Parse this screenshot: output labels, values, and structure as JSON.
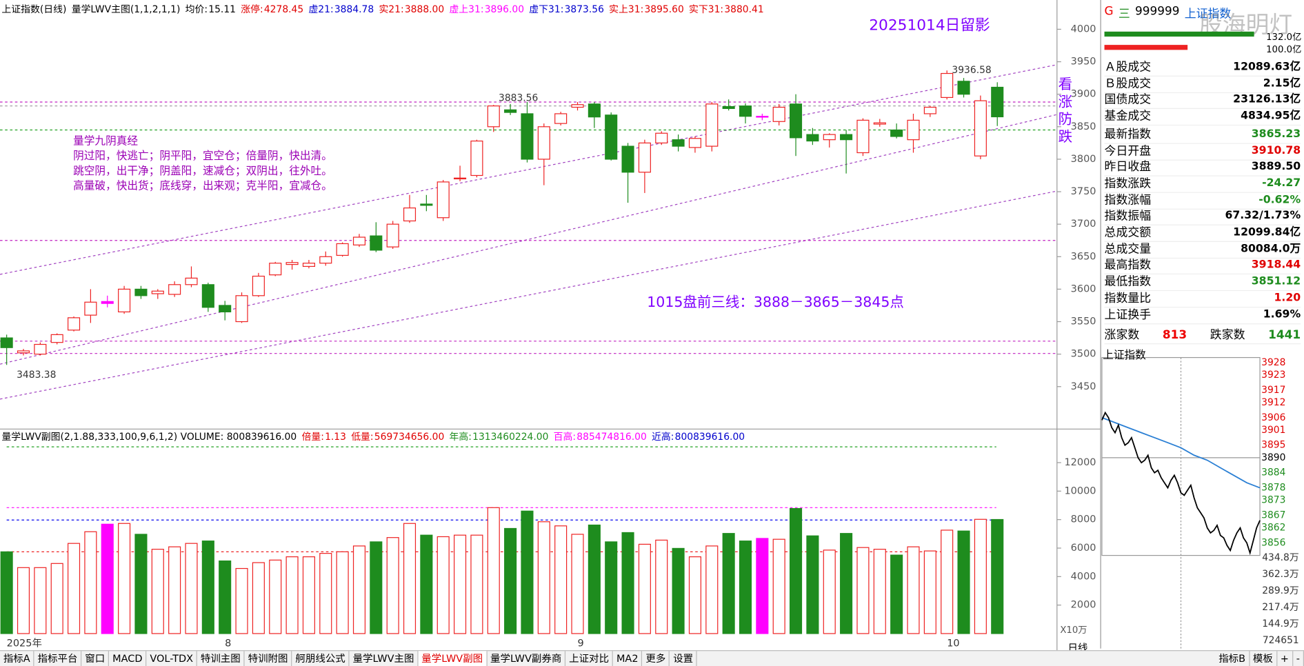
{
  "header": {
    "title": "上证指数(日线)",
    "indicator": "量学LWV主图(1,1,2,1,1)",
    "items": [
      {
        "label": "均价:",
        "value": "15.11",
        "color": "#000000"
      },
      {
        "label": "涨停:",
        "value": "4278.45",
        "color": "#e00000"
      },
      {
        "label": "虚21:",
        "value": "3884.78",
        "color": "#0000cc"
      },
      {
        "label": "实21:",
        "value": "3888.00",
        "color": "#e00000"
      },
      {
        "label": "虚上31:",
        "value": "3896.00",
        "color": "#ff00ff"
      },
      {
        "label": "虚下31:",
        "value": "3873.56",
        "color": "#0000cc"
      },
      {
        "label": "实上31:",
        "value": "3895.60",
        "color": "#e00000"
      },
      {
        "label": "实下31:",
        "value": "3880.41",
        "color": "#e00000"
      }
    ]
  },
  "main_chart": {
    "type": "candlestick",
    "ylim": [
      3386,
      4022
    ],
    "yticks": [
      4000,
      3950,
      3900,
      3850,
      3800,
      3750,
      3700,
      3650,
      3600,
      3550,
      3500,
      3450
    ],
    "categories": [
      "2025年",
      null,
      null,
      null,
      null,
      null,
      null,
      null,
      null,
      null,
      null,
      null,
      null,
      "8",
      null,
      null,
      null,
      null,
      null,
      null,
      null,
      null,
      null,
      null,
      null,
      null,
      null,
      null,
      null,
      null,
      null,
      null,
      null,
      null,
      "9",
      null,
      null,
      null,
      null,
      null,
      null,
      null,
      null,
      null,
      null,
      null,
      null,
      null,
      null,
      null,
      null,
      null,
      null,
      null,
      null,
      null,
      "10",
      null,
      null,
      null
    ],
    "open": [
      3525,
      3502,
      3500,
      3518,
      3537,
      3560,
      3578,
      3565,
      3600,
      3593,
      3592,
      3607,
      3607,
      3575,
      3550,
      3590,
      3622,
      3638,
      3635,
      3640,
      3652,
      3668,
      3682,
      3665,
      3705,
      3731,
      3710,
      3770,
      3775,
      3850,
      3876,
      3870,
      3800,
      3855,
      3880,
      3885,
      3868,
      3820,
      3780,
      3825,
      3830,
      3818,
      3820,
      3881,
      3882,
      3866,
      3858,
      3885,
      3838,
      3830,
      3838,
      3810,
      3854,
      3845,
      3830,
      3870,
      3895,
      3920,
      3805,
      3910.78
    ],
    "high": [
      3530,
      3508,
      3518,
      3532,
      3558,
      3600,
      3590,
      3605,
      3605,
      3600,
      3612,
      3635,
      3610,
      3582,
      3595,
      3625,
      3642,
      3645,
      3645,
      3658,
      3672,
      3685,
      3703,
      3705,
      3745,
      3745,
      3768,
      3790,
      3830,
      3883.56,
      3885,
      3888,
      3855,
      3873,
      3888,
      3888,
      3872,
      3825,
      3830,
      3843,
      3838,
      3835,
      3888,
      3892,
      3886,
      3870,
      3885,
      3900,
      3848,
      3840,
      3845,
      3863,
      3862,
      3855,
      3870,
      3882,
      3936.58,
      3925,
      3898,
      3918.44
    ],
    "low": [
      3483.38,
      3498,
      3498,
      3515,
      3535,
      3548,
      3572,
      3562,
      3585,
      3585,
      3588,
      3603,
      3565,
      3552,
      3548,
      3588,
      3620,
      3630,
      3632,
      3636,
      3650,
      3665,
      3657,
      3662,
      3702,
      3720,
      3705,
      3766,
      3772,
      3842,
      3868,
      3795,
      3760,
      3852,
      3875,
      3848,
      3798,
      3733,
      3748,
      3822,
      3812,
      3810,
      3812,
      3875,
      3855,
      3860,
      3852,
      3805,
      3822,
      3818,
      3778,
      3805,
      3850,
      3832,
      3810,
      3865,
      3892,
      3895,
      3800,
      3851.12
    ],
    "close": [
      3510,
      3505,
      3515,
      3530,
      3556,
      3580,
      3581,
      3600,
      3590,
      3597,
      3607,
      3617,
      3572,
      3565,
      3590,
      3620,
      3640,
      3641,
      3640,
      3650,
      3670,
      3680,
      3660,
      3700,
      3725,
      3729,
      3765,
      3771,
      3828,
      3882,
      3872,
      3800,
      3850,
      3870,
      3884,
      3865,
      3800,
      3780,
      3825,
      3840,
      3820,
      3832,
      3885,
      3878,
      3866,
      3865,
      3880,
      3833,
      3828,
      3838,
      3830,
      3860,
      3856,
      3835,
      3860,
      3880,
      3932,
      3900,
      3890,
      3865.23
    ],
    "up_color": "#ee2222",
    "colors": [
      "#1e8c1e",
      "#ee2222",
      "#ee2222",
      "#ee2222",
      "#ee2222",
      "#ee2222",
      "#ff00ff",
      "#ee2222",
      "#1e8c1e",
      "#ee2222",
      "#ee2222",
      "#ee2222",
      "#1e8c1e",
      "#1e8c1e",
      "#ee2222",
      "#ee2222",
      "#ee2222",
      "#ee2222",
      "#ee2222",
      "#ee2222",
      "#ee2222",
      "#ee2222",
      "#1e8c1e",
      "#ee2222",
      "#ee2222",
      "#1e8c1e",
      "#ee2222",
      "#ee2222",
      "#ee2222",
      "#ee2222",
      "#1e8c1e",
      "#1e8c1e",
      "#ee2222",
      "#ee2222",
      "#ee2222",
      "#1e8c1e",
      "#1e8c1e",
      "#1e8c1e",
      "#ee2222",
      "#ee2222",
      "#1e8c1e",
      "#ee2222",
      "#ee2222",
      "#1e8c1e",
      "#1e8c1e",
      "#ff00ff",
      "#ee2222",
      "#1e8c1e",
      "#1e8c1e",
      "#ee2222",
      "#1e8c1e",
      "#ee2222",
      "#ee2222",
      "#1e8c1e",
      "#ee2222",
      "#ee2222",
      "#ee2222",
      "#1e8c1e",
      "#ee2222",
      "#1e8c1e"
    ],
    "reference_lines": [
      3888,
      3882,
      3845,
      3675,
      3520,
      3501
    ],
    "reference_colors": [
      "#c020c0",
      "#a0a0a0",
      "#20a020",
      "#c020c0",
      "#c020c0",
      "#c020c0"
    ],
    "stamp": "20251014日留影",
    "verse_title": "量学九阴真经",
    "verse_lines": [
      "阴过阳，快逃亡；阴平阳，宜空仓；倍量阴，快出清。",
      "跳空阴，出干净；阴盖阳，速减仓；双阴出，往外吐。",
      "高量破，快出货；底线穿，出来观；克半阳，宜减仓。"
    ],
    "plan": "1015盘前三线：3888－3865－3845点",
    "side_note": "看涨防跌"
  },
  "volume_chart": {
    "type": "bar",
    "title": "量学LWV副图(2,1.88,333,100,9,6,1,2) VOLUME: 800839616.00",
    "items": [
      {
        "label": "倍量:",
        "value": "1.13",
        "color": "#e00000"
      },
      {
        "label": "低量:",
        "value": "569734656.00",
        "color": "#e00000"
      },
      {
        "label": "年高:",
        "value": "1313460224.00",
        "color": "#1e8c1e"
      },
      {
        "label": "百高:",
        "value": "885474816.00",
        "color": "#ff00ff"
      },
      {
        "label": "近高:",
        "value": "800839616.00",
        "color": "#0000cc"
      }
    ],
    "values": [
      5740,
      4630,
      4630,
      4920,
      6330,
      7150,
      7680,
      7730,
      6970,
      5920,
      6090,
      6330,
      6500,
      5100,
      4570,
      4980,
      5160,
      5390,
      5390,
      5630,
      5740,
      6150,
      6440,
      6740,
      7730,
      6910,
      6800,
      6910,
      6910,
      8840,
      7380,
      8600,
      7850,
      7560,
      6970,
      7620,
      6440,
      7090,
      6270,
      6560,
      5980,
      5390,
      6150,
      7030,
      6500,
      6680,
      6620,
      8780,
      6860,
      5860,
      7030,
      6040,
      5920,
      5510,
      6090,
      5800,
      7260,
      7200,
      8020,
      8008
    ],
    "ylim": [
      0,
      14300
    ],
    "yticks": [
      12000,
      10000,
      8000,
      6000,
      4000,
      2000
    ],
    "unit": "X10万",
    "reference_lines": [
      13110,
      8840,
      7970,
      5740
    ],
    "reference_colors": [
      "#20a020",
      "#ff00ff",
      "#0000ee",
      "#ee2222"
    ]
  },
  "period": "日线",
  "quote_panel": {
    "flag": "G",
    "menu": "三",
    "code": "999999",
    "name": "上证指数",
    "watermark": "股海明灯",
    "scale_top": "132.0亿",
    "scale_bottom": "100.0亿",
    "rows": [
      {
        "label": "Ａ股成交",
        "value": "12089.63亿",
        "color": "#000000"
      },
      {
        "label": "Ｂ股成交",
        "value": "2.15亿",
        "color": "#000000"
      },
      {
        "label": "国债成交",
        "value": "23126.13亿",
        "color": "#000000"
      },
      {
        "label": "基金成交",
        "value": "4834.95亿",
        "color": "#000000"
      },
      {
        "label": "最新指数",
        "value": "3865.23",
        "color": "#1e8c1e"
      },
      {
        "label": "今日开盘",
        "value": "3910.78",
        "color": "#e00000"
      },
      {
        "label": "昨日收盘",
        "value": "3889.50",
        "color": "#000000"
      },
      {
        "label": "指数涨跌",
        "value": "-24.27",
        "color": "#1e8c1e"
      },
      {
        "label": "指数涨幅",
        "value": "-0.62%",
        "color": "#1e8c1e"
      },
      {
        "label": "指数振幅",
        "value": "67.32/1.73%",
        "color": "#000000"
      },
      {
        "label": "总成交额",
        "value": "12099.84亿",
        "color": "#000000"
      },
      {
        "label": "总成交量",
        "value": "80084.0万",
        "color": "#000000"
      },
      {
        "label": "最高指数",
        "value": "3918.44",
        "color": "#e00000"
      },
      {
        "label": "最低指数",
        "value": "3851.12",
        "color": "#1e8c1e"
      },
      {
        "label": "指数量比",
        "value": "1.20",
        "color": "#e00000"
      },
      {
        "label": "上证换手",
        "value": "1.69%",
        "color": "#000000"
      }
    ],
    "breadth": {
      "up_label": "涨家数",
      "up": 813,
      "down_label": "跌家数",
      "down": 1441
    }
  },
  "intraday": {
    "type": "line",
    "title": "上证指数",
    "ylim": [
      3851,
      3930
    ],
    "yticks": [
      3928,
      3923,
      3917,
      3912,
      3906,
      3901,
      3895,
      3890,
      3884,
      3878,
      3873,
      3867,
      3862,
      3856
    ],
    "base": 3890,
    "price": [
      3905,
      3908,
      3906,
      3902,
      3900,
      3903,
      3898,
      3895,
      3896,
      3898,
      3894,
      3890,
      3888,
      3889,
      3891,
      3886,
      3884,
      3885,
      3882,
      3880,
      3878,
      3881,
      3883,
      3880,
      3876,
      3875,
      3877,
      3879,
      3874,
      3870,
      3868,
      3866,
      3862,
      3860,
      3861,
      3863,
      3859,
      3858,
      3855,
      3853,
      3857,
      3860,
      3862,
      3858,
      3856,
      3852,
      3857,
      3862,
      3865
    ],
    "average": [
      3906,
      3904,
      3902,
      3900,
      3898,
      3896,
      3894,
      3891,
      3889,
      3886,
      3883,
      3880,
      3878
    ],
    "price_color": "#000000",
    "average_color": "#2a7fd4",
    "volume_ylim": [
      0,
      4348000
    ],
    "volume_ticks": [
      {
        "value": 4348000,
        "label": "434.8万"
      },
      {
        "value": 3623000,
        "label": "362.3万"
      },
      {
        "value": 2899000,
        "label": "289.9万"
      },
      {
        "value": 2174000,
        "label": "217.4万"
      },
      {
        "value": 1449000,
        "label": "144.9万"
      },
      {
        "value": 724651,
        "label": "724651"
      }
    ]
  },
  "toolbar": {
    "tabs": [
      {
        "label": "指标A"
      },
      {
        "label": "指标平台"
      },
      {
        "label": "窗口"
      },
      {
        "label": "MACD"
      },
      {
        "label": "VOL-TDX"
      },
      {
        "label": "特训主图"
      },
      {
        "label": "特训附图"
      },
      {
        "label": "舸朋线公式"
      },
      {
        "label": "量学LWV主图"
      },
      {
        "label": "量学LWV副图",
        "active": true
      },
      {
        "label": "量学LWV副券商"
      },
      {
        "label": "上证对比"
      },
      {
        "label": "MA2"
      },
      {
        "label": "更多"
      },
      {
        "label": "设置"
      }
    ],
    "right": [
      "指标B",
      "模板",
      "+",
      "-"
    ]
  }
}
